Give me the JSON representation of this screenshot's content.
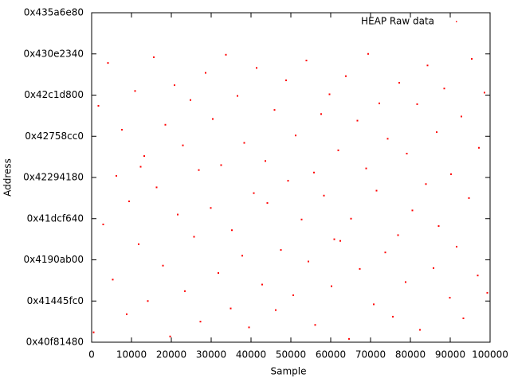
{
  "chart_data": {
    "type": "scatter",
    "xlabel": "Sample",
    "ylabel": "Address",
    "xlim": [
      0,
      100000
    ],
    "xticks": [
      0,
      10000,
      20000,
      30000,
      40000,
      50000,
      60000,
      70000,
      80000,
      90000,
      100000
    ],
    "ylim": [
      1090000000,
      1130000000
    ],
    "yticks": [
      {
        "value": 1090000000,
        "label": "0x40f81480"
      },
      {
        "value": 1095000000,
        "label": "0x41445fc0"
      },
      {
        "value": 1100000000,
        "label": "0x4190ab00"
      },
      {
        "value": 1105000000,
        "label": "0x41dcf640"
      },
      {
        "value": 1110000000,
        "label": "0x42294180"
      },
      {
        "value": 1115000000,
        "label": "0x42758cc0"
      },
      {
        "value": 1120000000,
        "label": "0x42c1d800"
      },
      {
        "value": 1125000000,
        "label": "0x430e2340"
      },
      {
        "value": 1130000000,
        "label": "0x435a6e80"
      }
    ],
    "legend": "top-right",
    "series": [
      {
        "name": "HEAP Raw data",
        "color": "#ff0000",
        "x": [
          500,
          1700,
          2900,
          4100,
          5300,
          6200,
          7600,
          8800,
          9400,
          10900,
          11800,
          13200,
          14100,
          15600,
          16300,
          17900,
          18500,
          19700,
          20800,
          21600,
          22900,
          23400,
          24800,
          25700,
          26900,
          27300,
          28600,
          29900,
          30400,
          31800,
          32500,
          33700,
          34900,
          35200,
          36600,
          37800,
          38300,
          39500,
          40700,
          41400,
          42800,
          43600,
          44100,
          45900,
          46200,
          47500,
          48800,
          49300,
          50600,
          51200,
          52700,
          53900,
          54400,
          55800,
          56100,
          57600,
          58300,
          59700,
          60200,
          61900,
          62400,
          63800,
          64600,
          65100,
          66700,
          67300,
          68900,
          69400,
          70800,
          71500,
          72200,
          73700,
          74300,
          75600,
          76900,
          77200,
          78800,
          79100,
          80500,
          81700,
          82400,
          83900,
          84300,
          85800,
          86600,
          87100,
          88500,
          89900,
          90200,
          91600,
          92800,
          93300,
          94700,
          95400,
          96900,
          97200,
          98600,
          99300,
          12300,
          60900
        ],
        "values": [
          1091200000.0,
          1118700000.0,
          1104300000.0,
          1123900000.0,
          1097600000.0,
          1110200000.0,
          1115800000.0,
          1093400000.0,
          1107100000.0,
          1120500000.0,
          1101900000.0,
          1112600000.0,
          1095000000.0,
          1124600000.0,
          1108800000.0,
          1099300000.0,
          1116400000.0,
          1090700000.0,
          1121200000.0,
          1105500000.0,
          1113900000.0,
          1096200000.0,
          1119400000.0,
          1102800000.0,
          1110900000.0,
          1092500000.0,
          1122700000.0,
          1106300000.0,
          1117100000.0,
          1098400000.0,
          1111500000.0,
          1124900000.0,
          1094100000.0,
          1103600000.0,
          1119900000.0,
          1100500000.0,
          1114200000.0,
          1091800000.0,
          1108100000.0,
          1123300000.0,
          1097000000.0,
          1112000000.0,
          1106900000.0,
          1118200000.0,
          1093900000.0,
          1101200000.0,
          1121800000.0,
          1109600000.0,
          1095700000.0,
          1115100000.0,
          1104900000.0,
          1124200000.0,
          1099800000.0,
          1110600000.0,
          1092100000.0,
          1117700000.0,
          1107800000.0,
          1120100000.0,
          1096800000.0,
          1113300000.0,
          1102300000.0,
          1122300000.0,
          1090400000.0,
          1105000000.0,
          1116900000.0,
          1098900000.0,
          1111100000.0,
          1125000000.0,
          1094600000.0,
          1108400000.0,
          1119000000.0,
          1100900000.0,
          1114700000.0,
          1093100000.0,
          1103000000.0,
          1121500000.0,
          1097300000.0,
          1112900000.0,
          1106000000.0,
          1118900000.0,
          1091500000.0,
          1109200000.0,
          1123600000.0,
          1099000000.0,
          1115500000.0,
          1104100000.0,
          1120800000.0,
          1095400000.0,
          1110400000.0,
          1101600000.0,
          1117400000.0,
          1092900000.0,
          1107500000.0,
          1124400000.0,
          1098100000.0,
          1113600000.0,
          1120300000.0,
          1096000000.0,
          1111300000.0,
          1102500000.0
        ]
      }
    ]
  }
}
